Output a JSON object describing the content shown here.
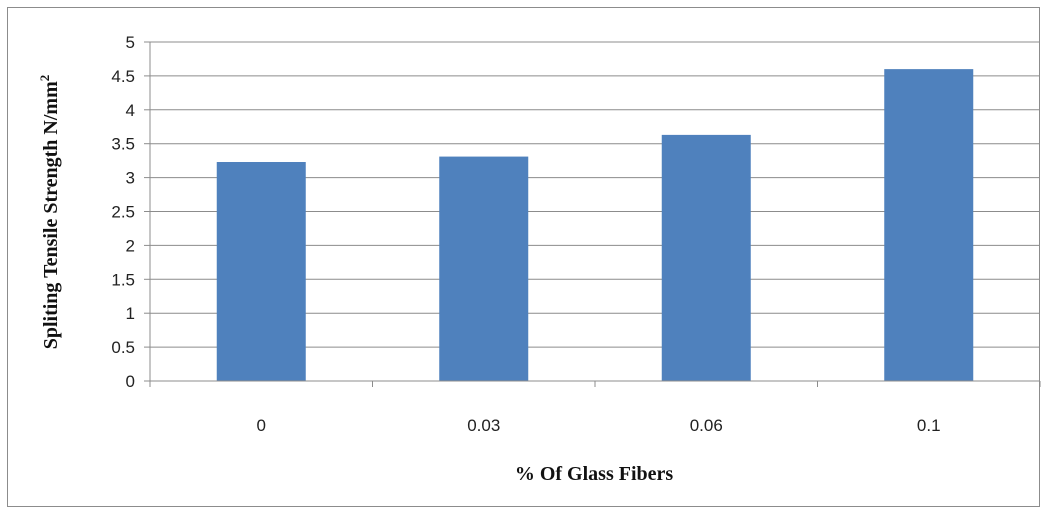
{
  "chart_data": {
    "type": "bar",
    "categories": [
      "0",
      "0.03",
      "0.06",
      "0.1"
    ],
    "values": [
      3.23,
      3.31,
      3.63,
      4.6
    ],
    "title": "",
    "xlabel": "% Of Glass Fibers",
    "ylabel": "Spliting Tensile Strength N/mm",
    "ylabel_superscript": "2",
    "ylim": [
      0,
      5
    ],
    "yticks": [
      "0",
      "0.5",
      "1",
      "1.5",
      "2",
      "2.5",
      "3",
      "3.5",
      "4",
      "4.5",
      "5"
    ],
    "grid": true,
    "legend": "none",
    "bar_color": "#4f81bd",
    "grid_color": "#8c8c8c"
  }
}
